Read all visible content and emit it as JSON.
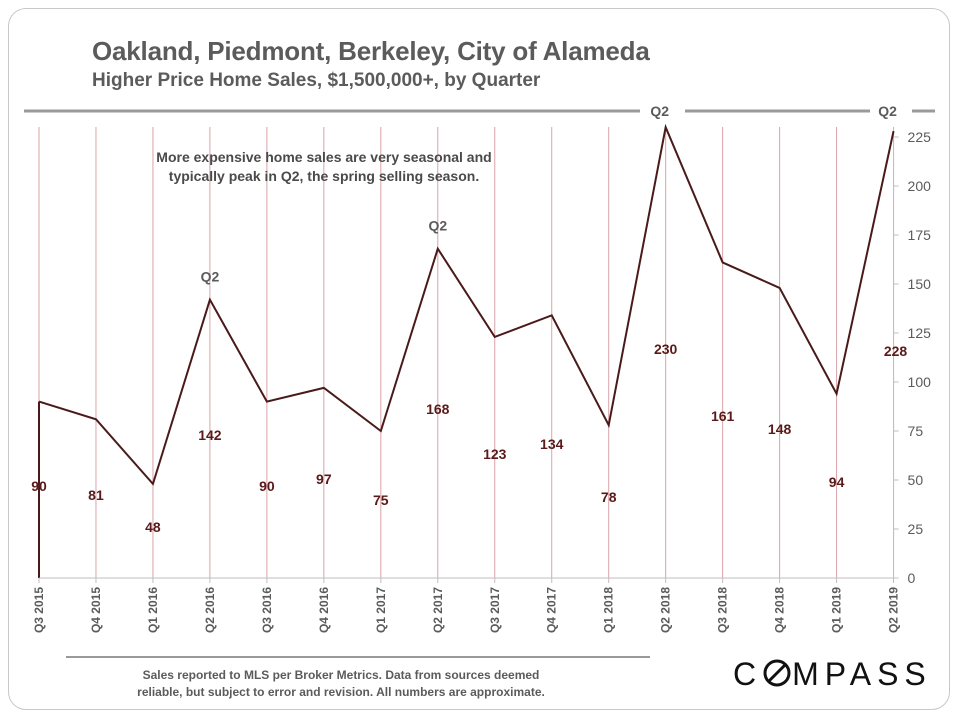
{
  "header": {
    "title": "Oakland, Piedmont, Berkeley, City of Alameda",
    "subtitle": "Higher Price Home Sales, $1,500,000+, by Quarter"
  },
  "annotation": {
    "line1": "More expensive home sales are very seasonal and",
    "line2": "typically peak in Q2, the spring selling season."
  },
  "footer": {
    "line1": "Sales reported to MLS per Broker Metrics. Data from sources  deemed",
    "line2": "reliable, but subject to error and revision. All numbers are approximate."
  },
  "logo": {
    "before": "C",
    "after": "MPASS"
  },
  "colors": {
    "line": "#4a1a1a",
    "label": "#5a1a1a",
    "gridline": "#d9a3a8",
    "axis_text": "#5b5b5b"
  },
  "chart_data": {
    "type": "line",
    "title": "Oakland, Piedmont, Berkeley, City of Alameda",
    "subtitle": "Higher Price Home Sales, $1,500,000+, by Quarter",
    "categories": [
      "Q3 2015",
      "Q4 2015",
      "Q1 2016",
      "Q2 2016",
      "Q3 2016",
      "Q4 2016",
      "Q1 2017",
      "Q2 2017",
      "Q3 2017",
      "Q4 2017",
      "Q1 2018",
      "Q2 2018",
      "Q3 2018",
      "Q4 2018",
      "Q1 2019",
      "Q2 2019"
    ],
    "values": [
      90,
      81,
      48,
      142,
      90,
      97,
      75,
      168,
      123,
      134,
      78,
      230,
      161,
      148,
      94,
      228
    ],
    "value_labels": [
      "90",
      "81",
      "48",
      "142",
      "90",
      "97",
      "75",
      "168",
      "123",
      "134",
      "78",
      "230",
      "161",
      "148",
      "94",
      "228"
    ],
    "peak_markers": [
      {
        "index": 3,
        "label": "Q2"
      },
      {
        "index": 7,
        "label": "Q2"
      },
      {
        "index": 11,
        "label": "Q2"
      },
      {
        "index": 15,
        "label": "Q2"
      }
    ],
    "ylim": [
      0,
      235
    ],
    "yticks": [
      0,
      25,
      50,
      75,
      100,
      125,
      150,
      175,
      200,
      225
    ],
    "y_axis_side": "right",
    "grid": "vertical lines at each quarter"
  }
}
